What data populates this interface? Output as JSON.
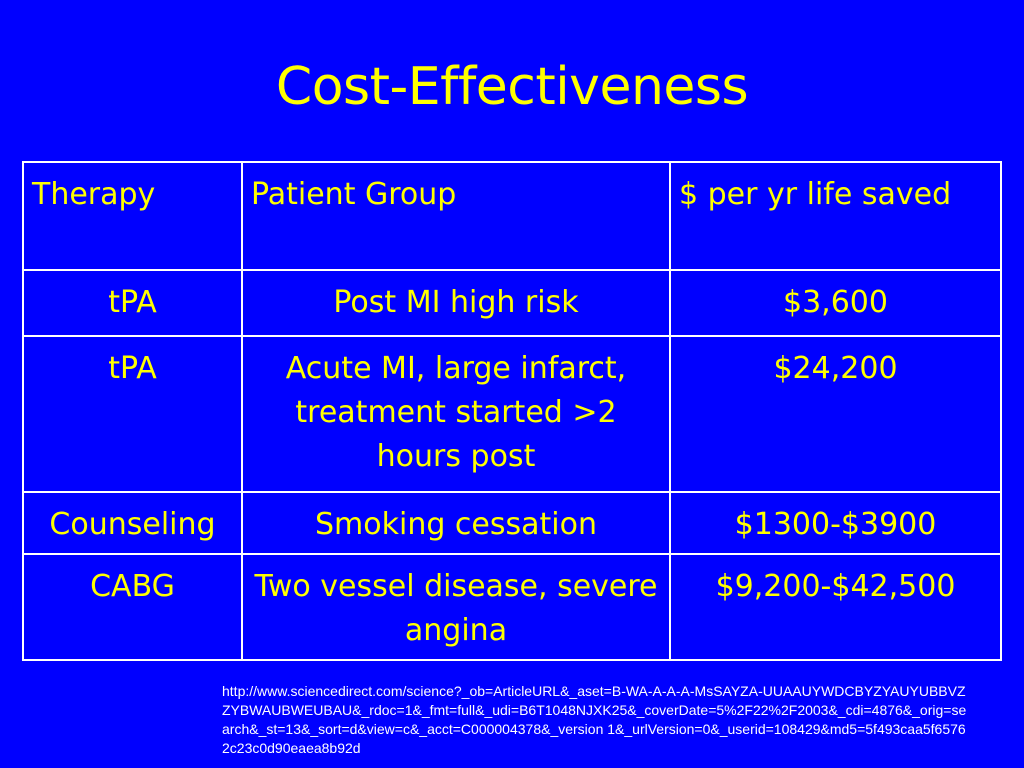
{
  "slide": {
    "title": "Cost-Effectiveness",
    "colors": {
      "background": "#0000FF",
      "title": "#FFFF00",
      "table_text": "#FFFF00",
      "border": "#FFFFFF",
      "url_text": "#FFFFFF"
    }
  },
  "table": {
    "headers": [
      "Therapy",
      "Patient Group",
      "$ per yr life saved"
    ],
    "rows": [
      [
        "tPA",
        "Post MI high risk",
        "$3,600"
      ],
      [
        "tPA",
        "Acute MI, large infarct, treatment started >2 hours post",
        "$24,200"
      ],
      [
        "Counseling",
        "Smoking cessation",
        "$1300-$3900"
      ],
      [
        "CABG",
        "Two vessel disease, severe angina",
        "$9,200-$42,500"
      ]
    ]
  },
  "source": {
    "url": "http://www.sciencedirect.com/science?_ob=ArticleURL&_aset=B-WA-A-A-A-MsSAYZA-UUAAUYWDCBYZYAUYUBBVZZYBWAUBWEUBAU&_rdoc=1&_fmt=full&_udi=B6T1048NJXK25&_coverDate=5%2F22%2F2003&_cdi=4876&_orig=search&_st=13&_sort=d&view=c&_acct=C000004378&_version 1&_urlVersion=0&_userid=108429&md5=5f493caa5f65762c23c0d90eaea8b92d"
  }
}
